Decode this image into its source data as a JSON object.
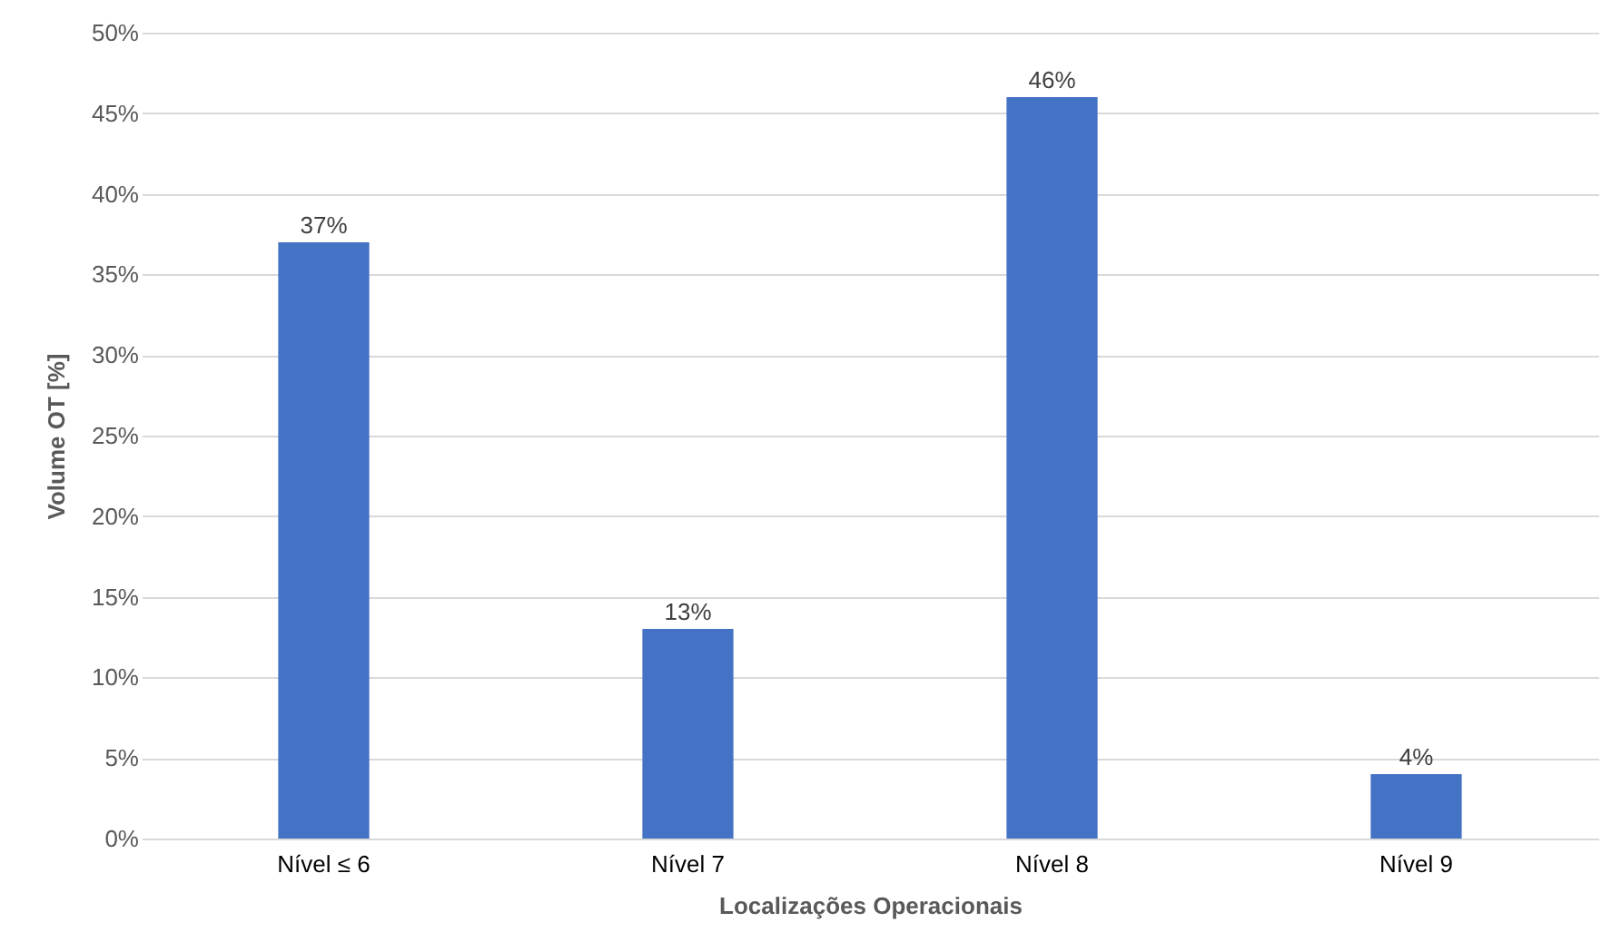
{
  "chart_data": {
    "type": "bar",
    "xlabel": "Localizações Operacionais",
    "ylabel": "Volume OT [%]",
    "categories": [
      "Nível ≤ 6",
      "Nível 7",
      "Nível 8",
      "Nível 9"
    ],
    "values": [
      37,
      13,
      46,
      4
    ],
    "color": "#4472c4",
    "ylim": [
      0,
      50
    ],
    "yticks": [
      {
        "value": 0,
        "label": "0%"
      },
      {
        "value": 5,
        "label": "5%"
      },
      {
        "value": 10,
        "label": "10%"
      },
      {
        "value": 15,
        "label": "15%"
      },
      {
        "value": 20,
        "label": "20%"
      },
      {
        "value": 25,
        "label": "25%"
      },
      {
        "value": 30,
        "label": "30%"
      },
      {
        "value": 35,
        "label": "35%"
      },
      {
        "value": 40,
        "label": "40%"
      },
      {
        "value": 45,
        "label": "45%"
      },
      {
        "value": 50,
        "label": "50%"
      }
    ],
    "value_labels": [
      "37%",
      "13%",
      "46%",
      "4%"
    ],
    "grid": "y"
  }
}
